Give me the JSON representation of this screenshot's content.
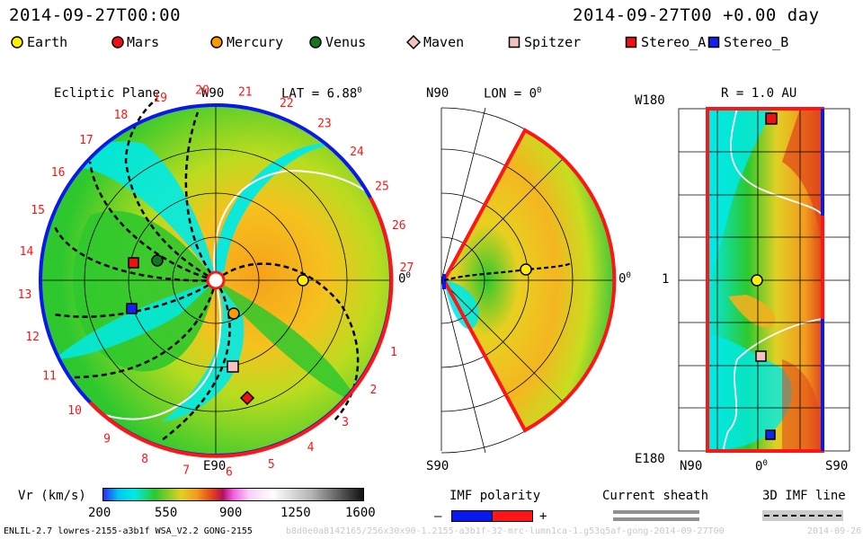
{
  "header": {
    "left_timestamp": "2014-09-27T00:00",
    "right_timestamp": "2014-09-27T00 +0.00 day"
  },
  "legend": [
    {
      "label": "Earth",
      "shape": "circle",
      "color": "#ffee00"
    },
    {
      "label": "Mars",
      "shape": "circle",
      "color": "#ee1111"
    },
    {
      "label": "Mercury",
      "shape": "circle",
      "color": "#ff9900"
    },
    {
      "label": "Venus",
      "shape": "circle",
      "color": "#117722"
    },
    {
      "label": "Maven",
      "shape": "diamond",
      "color": "#f4c0c0"
    },
    {
      "label": "Spitzer",
      "shape": "square",
      "color": "#f4c0c0"
    },
    {
      "label": "Stereo_A",
      "shape": "square",
      "color": "#ee1111"
    },
    {
      "label": "Stereo_B",
      "shape": "square",
      "color": "#1122ee"
    }
  ],
  "ecliptic_panel": {
    "title": "Ecliptic Plane",
    "top_label": "W90",
    "bottom_label": "E90",
    "lat_label": "LAT = 6.88",
    "lat_deg_mark": "0",
    "zero_label": "0",
    "zero_deg_mark": "0",
    "rotation_ticks": [
      "1",
      "2",
      "3",
      "4",
      "5",
      "6",
      "7",
      "8",
      "9",
      "10",
      "11",
      "12",
      "13",
      "14",
      "15",
      "16",
      "17",
      "18",
      "19",
      "20",
      "21",
      "22",
      "23",
      "24",
      "25",
      "26",
      "27"
    ]
  },
  "meridional_panel": {
    "top_label": "N90",
    "bottom_label": "S90",
    "lon_label": "LON = 0",
    "lon_deg_mark": "0",
    "zero_label": "0",
    "zero_deg_mark": "0"
  },
  "radial_panel": {
    "title": "R = 1.0 AU",
    "top_label": "W180",
    "bottom_label": "E180",
    "mid_label": "1",
    "x_labels": [
      "N90",
      "0",
      "S90"
    ],
    "zero_deg_mark": "0"
  },
  "colorbar": {
    "label": "Vr (km/s)",
    "ticks": [
      "200",
      "550",
      "900",
      "1250",
      "1600"
    ]
  },
  "imf_polarity": {
    "title": "IMF polarity",
    "minus": "–",
    "plus": "+"
  },
  "current_sheath": {
    "title": "Current sheath"
  },
  "imf_line": {
    "title": "3D IMF line"
  },
  "footer": {
    "model_info": "ENLIL-2.7 lowres-2155-a3b1f WSA_V2.2 GONG-2155",
    "run_id": "b8d0e0a8142165/256x30x90-1.2155-a3b1f-32-mrc-lumn1ca-1.g53q5af-gong-2014-09-27T00",
    "trailing": "2014-09-26"
  },
  "chart_data": {
    "type": "heatmap",
    "quantity": "Vr (km/s)",
    "range": [
      200,
      1600
    ],
    "colorbar_ticks": [
      200,
      550,
      900,
      1250,
      1600
    ],
    "panels": [
      "Ecliptic Plane",
      "LON = 0",
      "R = 1.0 AU"
    ],
    "colors": {
      "slow": "#00f0f0",
      "mid": "#2ec82e",
      "fast": "#f29b1e",
      "positive_polarity": "#ff1515",
      "negative_polarity": "#0a18f0"
    }
  }
}
